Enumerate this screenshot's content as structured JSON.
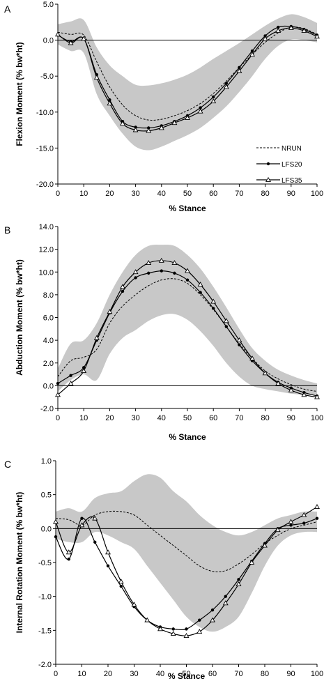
{
  "chart_data": [
    {
      "type": "line",
      "panel_label": "A",
      "xlabel": "% Stance",
      "ylabel": "Flexion Moment (% bw*ht)",
      "xlim": [
        0,
        100
      ],
      "ylim": [
        -20,
        5
      ],
      "xticks": [
        "0",
        "10",
        "20",
        "30",
        "40",
        "50",
        "60",
        "70",
        "80",
        "90",
        "100"
      ],
      "yticks": [
        "5.0",
        "0.0",
        "-5.0",
        "-10.0",
        "-15.0",
        "-20.0"
      ],
      "grid": false,
      "legend": "right-middle",
      "x": [
        0,
        5,
        10,
        15,
        20,
        25,
        30,
        35,
        40,
        45,
        50,
        55,
        60,
        65,
        70,
        75,
        80,
        85,
        90,
        95,
        100
      ],
      "band": {
        "upper": [
          2.2,
          2.6,
          2.8,
          -1.0,
          -3.5,
          -5.0,
          -6.2,
          -6.3,
          -6.0,
          -5.5,
          -4.8,
          -3.8,
          -2.6,
          -1.5,
          -0.4,
          0.8,
          2.0,
          3.0,
          3.6,
          3.2,
          2.4
        ],
        "lower": [
          -0.6,
          -1.5,
          -1.8,
          -7.5,
          -10.5,
          -13.0,
          -14.8,
          -15.3,
          -14.8,
          -14.0,
          -13.2,
          -12.2,
          -10.8,
          -9.2,
          -7.2,
          -5.0,
          -2.6,
          -0.8,
          0.1,
          0.0,
          -0.3
        ]
      },
      "series": [
        {
          "name": "NRUN",
          "marker": "none",
          "dash": "dotted",
          "values": [
            1.1,
            0.8,
            0.7,
            -3.0,
            -6.5,
            -9.0,
            -10.5,
            -11.1,
            -11.0,
            -10.5,
            -9.8,
            -8.8,
            -7.4,
            -5.7,
            -3.8,
            -2.0,
            -0.3,
            1.0,
            1.8,
            1.6,
            0.8
          ]
        },
        {
          "name": "LFS20",
          "marker": "circle",
          "dash": "solid",
          "values": [
            0.7,
            -0.2,
            0.2,
            -4.8,
            -8.3,
            -11.3,
            -12.1,
            -12.2,
            -11.9,
            -11.3,
            -10.5,
            -9.4,
            -7.9,
            -6.0,
            -3.8,
            -1.5,
            0.6,
            1.8,
            1.9,
            1.5,
            0.7
          ]
        },
        {
          "name": "LFS35",
          "marker": "triangle",
          "dash": "solid",
          "values": [
            0.8,
            -0.4,
            0.2,
            -5.2,
            -8.8,
            -11.6,
            -12.5,
            -12.6,
            -12.2,
            -11.5,
            -10.8,
            -9.9,
            -8.5,
            -6.5,
            -4.3,
            -2.0,
            0.2,
            1.3,
            1.7,
            1.3,
            0.5
          ]
        }
      ]
    },
    {
      "type": "line",
      "panel_label": "B",
      "xlabel": "% Stance",
      "ylabel": "Abduction Moment (% bw*ht)",
      "xlim": [
        0,
        100
      ],
      "ylim": [
        -2,
        14
      ],
      "xticks": [
        "0",
        "10",
        "20",
        "30",
        "40",
        "50",
        "60",
        "70",
        "80",
        "90",
        "100"
      ],
      "yticks": [
        "14.0",
        "12.0",
        "10.0",
        "8.0",
        "6.0",
        "4.0",
        "2.0",
        "0.0",
        "-2.0"
      ],
      "grid": false,
      "x": [
        0,
        5,
        10,
        15,
        20,
        25,
        30,
        35,
        40,
        45,
        50,
        55,
        60,
        65,
        70,
        75,
        80,
        85,
        90,
        95,
        100
      ],
      "band": {
        "upper": [
          1.5,
          3.7,
          4.0,
          5.5,
          8.0,
          10.0,
          11.5,
          12.3,
          12.4,
          12.3,
          11.5,
          10.3,
          8.7,
          6.9,
          5.0,
          3.3,
          2.2,
          1.4,
          0.9,
          0.5,
          0.2
        ],
        "lower": [
          -0.5,
          0.5,
          1.0,
          0.5,
          2.8,
          4.2,
          4.9,
          5.7,
          6.2,
          6.3,
          5.8,
          4.8,
          3.5,
          2.0,
          0.8,
          0.0,
          -0.3,
          -0.5,
          -0.7,
          -0.8,
          -0.8
        ]
      },
      "series": [
        {
          "name": "NRUN",
          "marker": "none",
          "dash": "dotted",
          "values": [
            0.8,
            2.2,
            2.5,
            3.2,
            5.5,
            7.0,
            8.0,
            8.8,
            9.3,
            9.4,
            9.0,
            8.0,
            6.7,
            5.2,
            3.7,
            2.4,
            1.3,
            0.6,
            0.1,
            -0.3,
            -0.5
          ]
        },
        {
          "name": "LFS20",
          "marker": "circle",
          "dash": "solid",
          "values": [
            0.2,
            0.9,
            1.6,
            4.0,
            6.4,
            8.3,
            9.5,
            9.9,
            10.1,
            9.9,
            9.3,
            8.2,
            6.8,
            5.2,
            3.6,
            2.2,
            1.1,
            0.3,
            -0.2,
            -0.6,
            -0.9
          ]
        },
        {
          "name": "LFS35",
          "marker": "triangle",
          "dash": "solid",
          "values": [
            -0.8,
            0.2,
            1.3,
            4.2,
            6.5,
            8.7,
            10.0,
            10.8,
            11.0,
            10.8,
            10.1,
            8.9,
            7.4,
            5.7,
            4.0,
            2.4,
            1.1,
            0.2,
            -0.4,
            -0.8,
            -1.0
          ]
        }
      ]
    },
    {
      "type": "line",
      "panel_label": "C",
      "xlabel": "% Stance",
      "ylabel": "Internal Rotation Moment (% bw*ht)",
      "xlim": [
        0,
        100
      ],
      "ylim": [
        -2,
        1
      ],
      "xticks": [
        "0",
        "10",
        "20",
        "30",
        "40",
        "50",
        "60",
        "70",
        "80",
        "90",
        "100"
      ],
      "yticks": [
        "1.0",
        "0.5",
        "0.0",
        "-0.5",
        "-1.0",
        "-1.5",
        "-2.0"
      ],
      "grid": false,
      "x": [
        0,
        5,
        10,
        15,
        20,
        25,
        30,
        35,
        40,
        45,
        50,
        55,
        60,
        65,
        70,
        75,
        80,
        85,
        90,
        95,
        100
      ],
      "band": {
        "upper": [
          0.25,
          0.3,
          0.25,
          0.45,
          0.52,
          0.55,
          0.7,
          0.8,
          0.75,
          0.55,
          0.4,
          0.2,
          0.05,
          -0.05,
          -0.1,
          -0.05,
          0.05,
          0.15,
          0.2,
          0.25,
          0.25
        ],
        "lower": [
          -0.15,
          -0.2,
          -0.2,
          -0.05,
          -0.1,
          -0.2,
          -0.3,
          -0.55,
          -0.8,
          -1.05,
          -1.3,
          -1.45,
          -1.52,
          -1.45,
          -1.3,
          -0.95,
          -0.55,
          -0.25,
          -0.1,
          -0.05,
          -0.05
        ]
      },
      "series": [
        {
          "name": "NRUN",
          "marker": "none",
          "dash": "dotted",
          "values": [
            0.15,
            0.13,
            0.05,
            0.2,
            0.25,
            0.25,
            0.2,
            0.05,
            -0.1,
            -0.25,
            -0.4,
            -0.55,
            -0.63,
            -0.62,
            -0.52,
            -0.38,
            -0.22,
            -0.1,
            0.0,
            0.05,
            0.1
          ]
        },
        {
          "name": "LFS20",
          "marker": "circle",
          "dash": "solid",
          "values": [
            -0.12,
            -0.45,
            0.15,
            -0.2,
            -0.55,
            -0.85,
            -1.15,
            -1.35,
            -1.45,
            -1.48,
            -1.48,
            -1.35,
            -1.2,
            -1.0,
            -0.75,
            -0.48,
            -0.22,
            0.0,
            0.05,
            0.08,
            0.15
          ]
        },
        {
          "name": "LFS35",
          "marker": "triangle",
          "dash": "solid",
          "values": [
            0.1,
            -0.35,
            0.05,
            0.15,
            -0.35,
            -0.78,
            -1.12,
            -1.35,
            -1.48,
            -1.55,
            -1.58,
            -1.52,
            -1.35,
            -1.1,
            -0.82,
            -0.5,
            -0.25,
            -0.02,
            0.1,
            0.2,
            0.32
          ]
        }
      ]
    }
  ]
}
